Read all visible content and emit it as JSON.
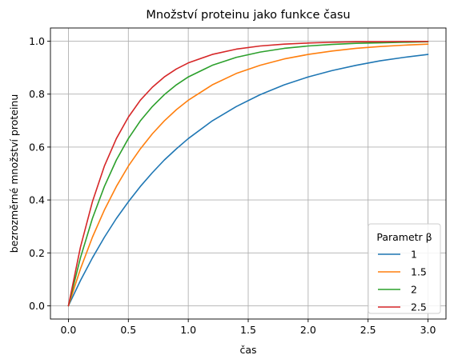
{
  "chart_data": {
    "type": "line",
    "title": "Množství proteinu jako funkce času",
    "xlabel": "čas",
    "ylabel": "bezrozměrné množství proteinu",
    "xlim": [
      -0.15,
      3.15
    ],
    "ylim": [
      -0.05,
      1.05
    ],
    "xticks": [
      0.0,
      0.5,
      1.0,
      1.5,
      2.0,
      2.5,
      3.0
    ],
    "xtick_labels": [
      "0.0",
      "0.5",
      "1.0",
      "1.5",
      "2.0",
      "2.5",
      "3.0"
    ],
    "yticks": [
      0.0,
      0.2,
      0.4,
      0.6,
      0.8,
      1.0
    ],
    "ytick_labels": [
      "0.0",
      "0.2",
      "0.4",
      "0.6",
      "0.8",
      "1.0"
    ],
    "grid": true,
    "legend": {
      "title": "Parametr β",
      "placement": "lower-right"
    },
    "x": [
      0.0,
      0.1,
      0.2,
      0.3,
      0.4,
      0.5,
      0.6,
      0.7,
      0.8,
      0.9,
      1.0,
      1.2,
      1.4,
      1.6,
      1.8,
      2.0,
      2.2,
      2.4,
      2.6,
      2.8,
      3.0
    ],
    "series": [
      {
        "name": "1",
        "color": "#1f77b4",
        "values": [
          0.0,
          0.095,
          0.181,
          0.259,
          0.33,
          0.393,
          0.451,
          0.503,
          0.551,
          0.593,
          0.632,
          0.699,
          0.753,
          0.798,
          0.835,
          0.865,
          0.889,
          0.909,
          0.926,
          0.939,
          0.95
        ]
      },
      {
        "name": "1.5",
        "color": "#ff7f0e",
        "values": [
          0.0,
          0.139,
          0.259,
          0.362,
          0.451,
          0.528,
          0.593,
          0.65,
          0.699,
          0.741,
          0.777,
          0.835,
          0.878,
          0.909,
          0.933,
          0.95,
          0.963,
          0.973,
          0.98,
          0.985,
          0.989
        ]
      },
      {
        "name": "2",
        "color": "#2ca02c",
        "values": [
          0.0,
          0.181,
          0.33,
          0.451,
          0.551,
          0.632,
          0.699,
          0.753,
          0.798,
          0.835,
          0.865,
          0.909,
          0.939,
          0.959,
          0.973,
          0.982,
          0.988,
          0.992,
          0.994,
          0.996,
          0.998
        ]
      },
      {
        "name": "2.5",
        "color": "#d62728",
        "values": [
          0.0,
          0.221,
          0.393,
          0.528,
          0.632,
          0.713,
          0.777,
          0.826,
          0.865,
          0.895,
          0.918,
          0.95,
          0.97,
          0.982,
          0.989,
          0.993,
          0.996,
          0.998,
          0.998,
          0.999,
          0.999
        ]
      }
    ]
  }
}
